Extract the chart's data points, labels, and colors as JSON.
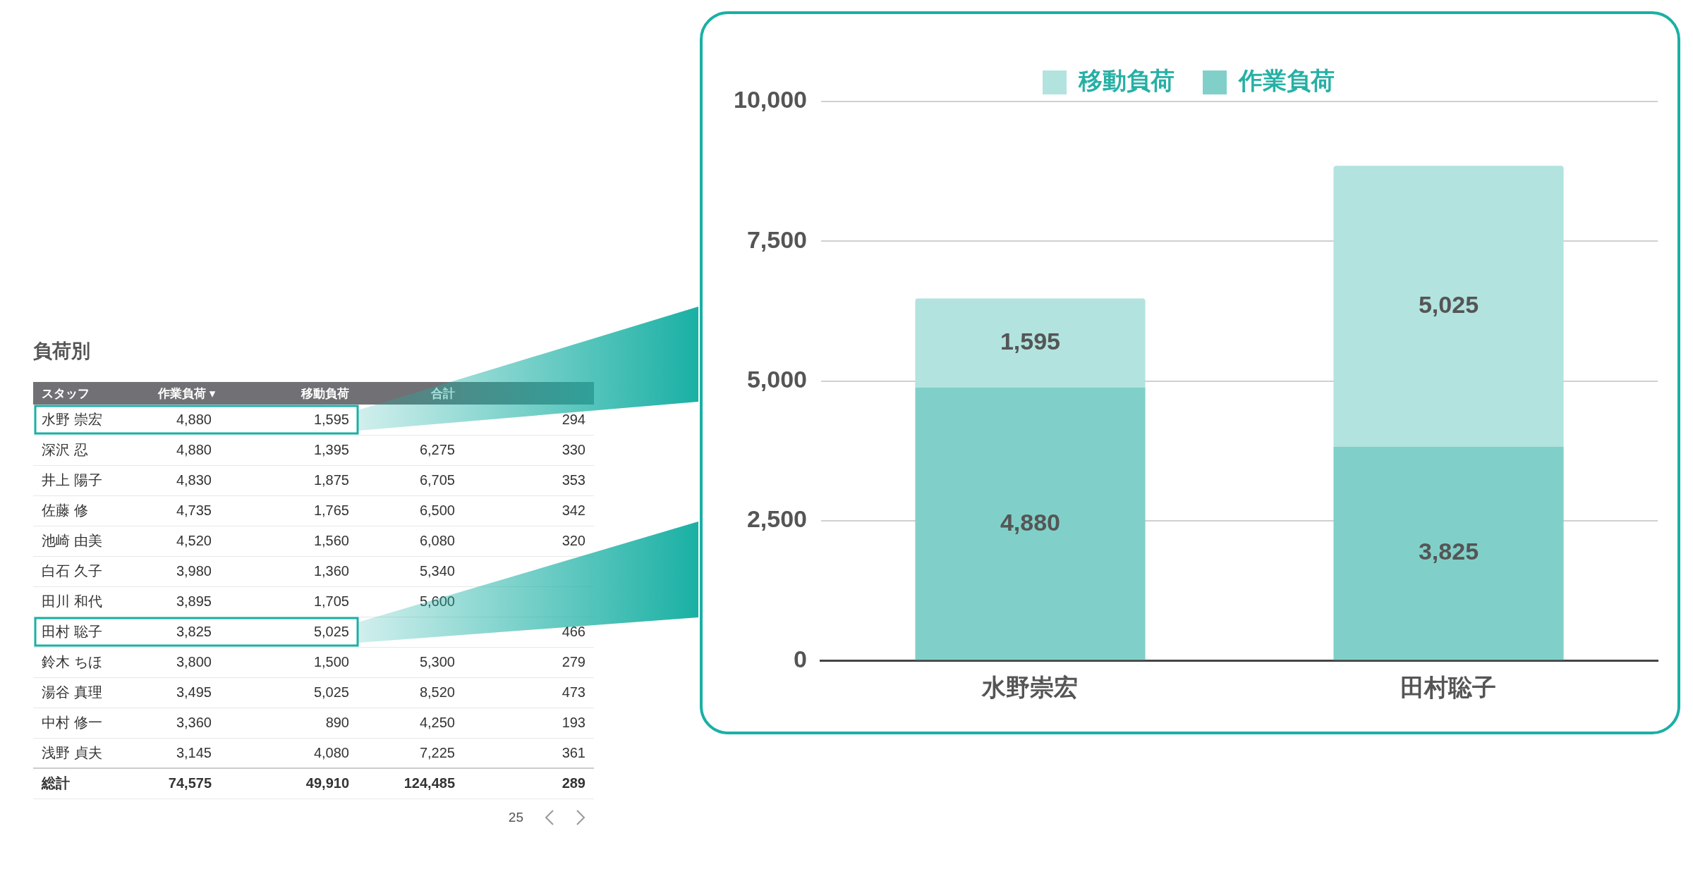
{
  "chart_data": [
    {
      "type": "other",
      "title": "負荷別",
      "categories": [
        "スタッフ",
        "作業負荷 ▾",
        "移動負荷",
        "合計",
        null
      ],
      "y_categories": [
        "水野 崇宏",
        "深沢 忍",
        "井上 陽子",
        "佐藤 修",
        "池崎 由美",
        "白石 久子",
        "田川 和代",
        "田村 聡子",
        "鈴木 ちほ",
        "湯谷 真理",
        "中村 修一",
        "浅野 貞夫",
        "総計"
      ],
      "cell_labels": [
        [
          "4,880",
          "1,595",
          null,
          "294"
        ],
        [
          "4,880",
          "1,395",
          "6,275",
          "330"
        ],
        [
          "4,830",
          "1,875",
          "6,705",
          "353"
        ],
        [
          "4,735",
          "1,765",
          "6,500",
          "342"
        ],
        [
          "4,520",
          "1,560",
          "6,080",
          "320"
        ],
        [
          "3,980",
          "1,360",
          "5,340",
          null
        ],
        [
          "3,895",
          "1,705",
          "5,600",
          null
        ],
        [
          "3,825",
          "5,025",
          null,
          "466"
        ],
        [
          "3,800",
          "1,500",
          "5,300",
          "279"
        ],
        [
          "3,495",
          "5,025",
          "8,520",
          "473"
        ],
        [
          "3,360",
          "890",
          "4,250",
          "193"
        ],
        [
          "3,145",
          "4,080",
          "7,225",
          "361"
        ],
        [
          "74,575",
          "49,910",
          "124,485",
          "289"
        ]
      ],
      "annotations": [
        "25"
      ]
    },
    {
      "type": "bar",
      "stacked": true,
      "categories": [
        "水野崇宏",
        "田村聡子"
      ],
      "series": [
        {
          "name": "作業負荷",
          "color": "#80d0c9",
          "values": [
            4880,
            3825
          ],
          "value_labels": [
            "4,880",
            "3,825"
          ]
        },
        {
          "name": "移動負荷",
          "color": "#b2e3df",
          "values": [
            1595,
            5025
          ],
          "value_labels": [
            "1,595",
            "5,025"
          ]
        }
      ],
      "ylim": [
        0,
        10000
      ],
      "yticks": [
        0,
        {
          "value": 2500,
          "label": "2,500"
        },
        {
          "value": 5000,
          "label": "5,000"
        },
        {
          "value": 7500,
          "label": "7,500"
        },
        {
          "value": 10000,
          "label": "10,000"
        }
      ],
      "grid": "y",
      "legend": "top"
    }
  ]
}
